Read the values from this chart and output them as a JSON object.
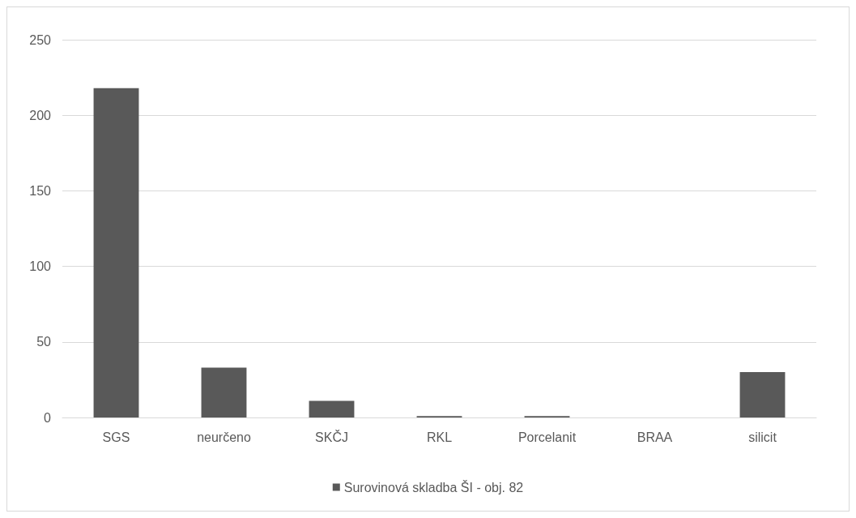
{
  "chart_data": {
    "type": "bar",
    "categories": [
      "SGS",
      "neurčeno",
      "SKČJ",
      "RKL",
      "Porcelanit",
      "BRAA",
      "silicit"
    ],
    "series": [
      {
        "name": "Surovinová skladba ŠI - obj. 82",
        "color": "#595959",
        "values": [
          218,
          33,
          11,
          1,
          1,
          0,
          30
        ]
      }
    ],
    "ylim": [
      0,
      250
    ],
    "yticks": [
      0,
      50,
      100,
      150,
      200,
      250
    ],
    "grid": "y",
    "legend": "bottom"
  }
}
